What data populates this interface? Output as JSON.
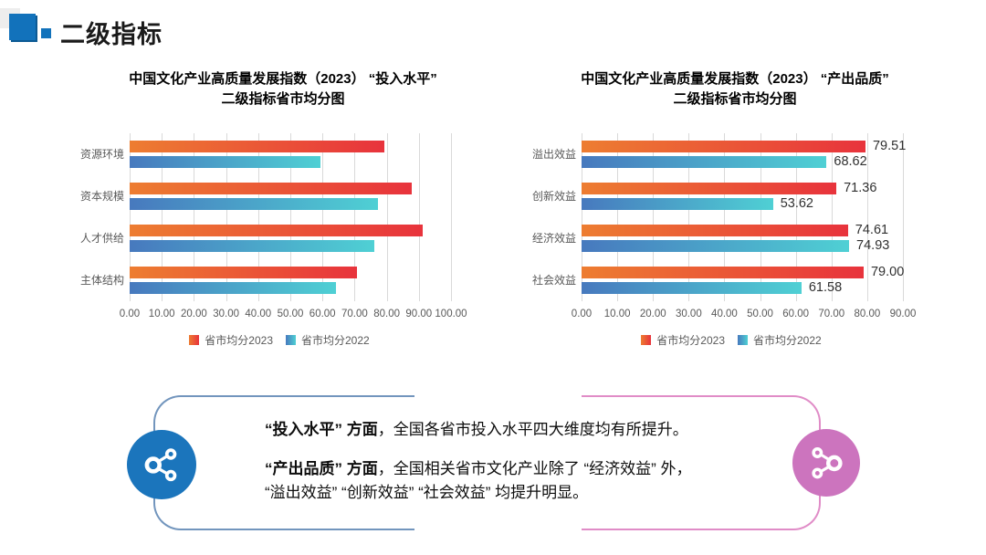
{
  "header": {
    "title": "二级指标"
  },
  "chart_data": [
    {
      "type": "bar",
      "orientation": "horizontal",
      "title_line1": "中国文化产业高质量发展指数（2023） “投入水平”",
      "title_line2": "二级指标省市均分图",
      "categories": [
        "资源环境",
        "资本规模",
        "人才供给",
        "主体结构"
      ],
      "series": [
        {
          "name": "省市均分2023",
          "values": [
            79.2,
            87.8,
            91.2,
            70.8
          ]
        },
        {
          "name": "省市均分2022",
          "values": [
            59.5,
            77.3,
            76.0,
            64.3
          ]
        }
      ],
      "xlim": [
        0,
        100
      ],
      "xtick_step": 10,
      "tick_format": "0.00",
      "data_labels": false,
      "grid": true,
      "legend_position": "bottom"
    },
    {
      "type": "bar",
      "orientation": "horizontal",
      "title_line1": "中国文化产业高质量发展指数（2023） “产出品质”",
      "title_line2": "二级指标省市均分图",
      "categories": [
        "溢出效益",
        "创新效益",
        "经济效益",
        "社会效益"
      ],
      "series": [
        {
          "name": "省市均分2023",
          "values": [
            79.51,
            71.36,
            74.61,
            79.0
          ]
        },
        {
          "name": "省市均分2022",
          "values": [
            68.62,
            53.62,
            74.93,
            61.58
          ]
        }
      ],
      "xlim": [
        0,
        90
      ],
      "xtick_step": 10,
      "tick_format": "0.00",
      "data_labels": true,
      "grid": true,
      "legend_position": "bottom"
    }
  ],
  "colors": {
    "bar_2023_gradient": [
      "#ED7D31",
      "#E8333C"
    ],
    "bar_2022_gradient": [
      "#4779BE",
      "#4FD0D4"
    ],
    "grid": "#D9D9D9",
    "axis_text": "#595959",
    "box_blue": "#7295BD",
    "box_pink": "#E08CC7",
    "circle_blue": "#1B75BC",
    "circle_pink": "#CC74BE",
    "header_blue": "#1272BB"
  },
  "note_box": {
    "p1_bold": "“投入水平” 方面",
    "p1_rest": "，全国各省市投入水平四大维度均有所提升。",
    "p2_bold": "“产出品质” 方面",
    "p2_rest": "，全国相关省市文化产业除了 “经济效益” 外，",
    "p2_line2": "“溢出效益” “创新效益” “社会效益” 均提升明显。"
  }
}
